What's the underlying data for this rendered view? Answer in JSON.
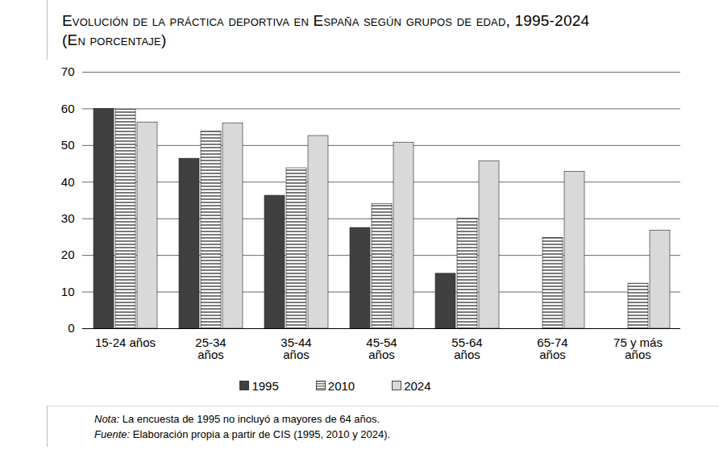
{
  "chart_data": {
    "type": "bar",
    "title": "Evolución de la práctica deportiva en España según grupos de edad, 1995-2024",
    "subtitle": "(En porcentaje)",
    "categories": [
      "15-24 años",
      "25-34 años",
      "35-44 años",
      "45-54 años",
      "55-64 años",
      "65-74 años",
      "75 y más años"
    ],
    "series": [
      {
        "name": "1995",
        "color": "#404040",
        "values": [
          60,
          46.4,
          36.3,
          27.5,
          15,
          null,
          null
        ]
      },
      {
        "name": "2010",
        "color": "#7a7a7a",
        "marker": "stripes",
        "values": [
          59.8,
          53.8,
          43.8,
          34,
          30,
          24.8,
          12.3
        ]
      },
      {
        "name": "2024",
        "color": "#d9d9d9",
        "values": [
          56.3,
          56,
          52.6,
          50.8,
          45.7,
          42.8,
          26.8
        ]
      }
    ],
    "ylim": [
      0,
      70
    ],
    "yticks": [
      0,
      10,
      20,
      30,
      40,
      50,
      60,
      70
    ],
    "grid": true,
    "legend": "bottom",
    "notes": [
      {
        "prefix": "Nota:",
        "text": "La encuesta de 1995 no incluyó a mayores de 64 años."
      },
      {
        "prefix": "Fuente:",
        "text": "Elaboración propia a partir de CIS (1995, 2010 y 2024)."
      }
    ]
  }
}
